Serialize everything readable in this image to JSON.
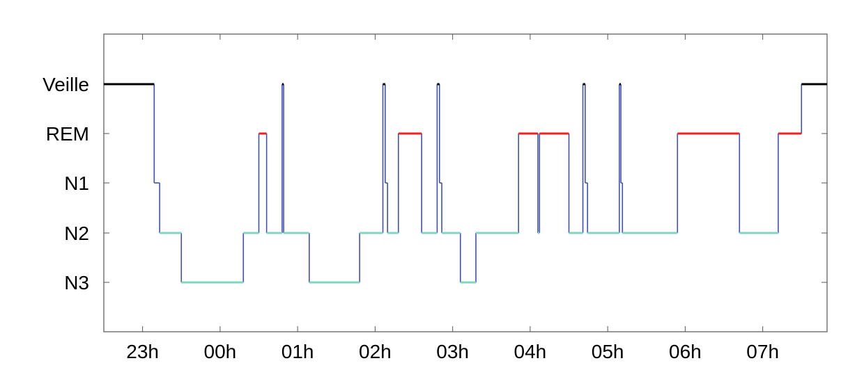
{
  "chart_data": {
    "type": "line",
    "title": "",
    "xlabel": "",
    "ylabel": "",
    "x_ticks": [
      "23h",
      "00h",
      "01h",
      "02h",
      "03h",
      "04h",
      "05h",
      "06h",
      "07h"
    ],
    "y_ticks": [
      "Veille",
      "REM",
      "N1",
      "N2",
      "N3"
    ],
    "xlim_hours": [
      22.5,
      31.83
    ],
    "grid": "y-dotted",
    "stage_colors": {
      "Veille": "#000000",
      "REM": "#ee2222",
      "N1": "#3f51b5",
      "N2": "#80d6c0",
      "N3": "#80d6c0"
    },
    "transition_color": "#3f51b5",
    "series": [
      {
        "values": [
          {
            "t": 22.5,
            "stage": "Veille"
          },
          {
            "t": 23.15,
            "stage": "N1"
          },
          {
            "t": 23.22,
            "stage": "N2"
          },
          {
            "t": 23.5,
            "stage": "N3"
          },
          {
            "t": 24.3,
            "stage": "N2"
          },
          {
            "t": 24.5,
            "stage": "REM"
          },
          {
            "t": 24.6,
            "stage": "N2"
          },
          {
            "t": 24.8,
            "stage": "Veille"
          },
          {
            "t": 24.82,
            "stage": "N2"
          },
          {
            "t": 25.15,
            "stage": "N3"
          },
          {
            "t": 25.8,
            "stage": "N2"
          },
          {
            "t": 26.1,
            "stage": "Veille"
          },
          {
            "t": 26.13,
            "stage": "N1"
          },
          {
            "t": 26.16,
            "stage": "N2"
          },
          {
            "t": 26.3,
            "stage": "REM"
          },
          {
            "t": 26.6,
            "stage": "N2"
          },
          {
            "t": 26.8,
            "stage": "Veille"
          },
          {
            "t": 26.83,
            "stage": "N1"
          },
          {
            "t": 26.86,
            "stage": "N2"
          },
          {
            "t": 27.1,
            "stage": "N3"
          },
          {
            "t": 27.3,
            "stage": "N2"
          },
          {
            "t": 27.85,
            "stage": "REM"
          },
          {
            "t": 28.1,
            "stage": "N2"
          },
          {
            "t": 28.12,
            "stage": "REM"
          },
          {
            "t": 28.5,
            "stage": "N2"
          },
          {
            "t": 28.68,
            "stage": "Veille"
          },
          {
            "t": 28.71,
            "stage": "N1"
          },
          {
            "t": 28.74,
            "stage": "N2"
          },
          {
            "t": 29.15,
            "stage": "Veille"
          },
          {
            "t": 29.17,
            "stage": "N1"
          },
          {
            "t": 29.19,
            "stage": "N2"
          },
          {
            "t": 29.9,
            "stage": "REM"
          },
          {
            "t": 30.7,
            "stage": "N2"
          },
          {
            "t": 31.2,
            "stage": "REM"
          },
          {
            "t": 31.5,
            "stage": "Veille"
          },
          {
            "t": 31.83,
            "stage": "Veille"
          }
        ]
      }
    ]
  }
}
